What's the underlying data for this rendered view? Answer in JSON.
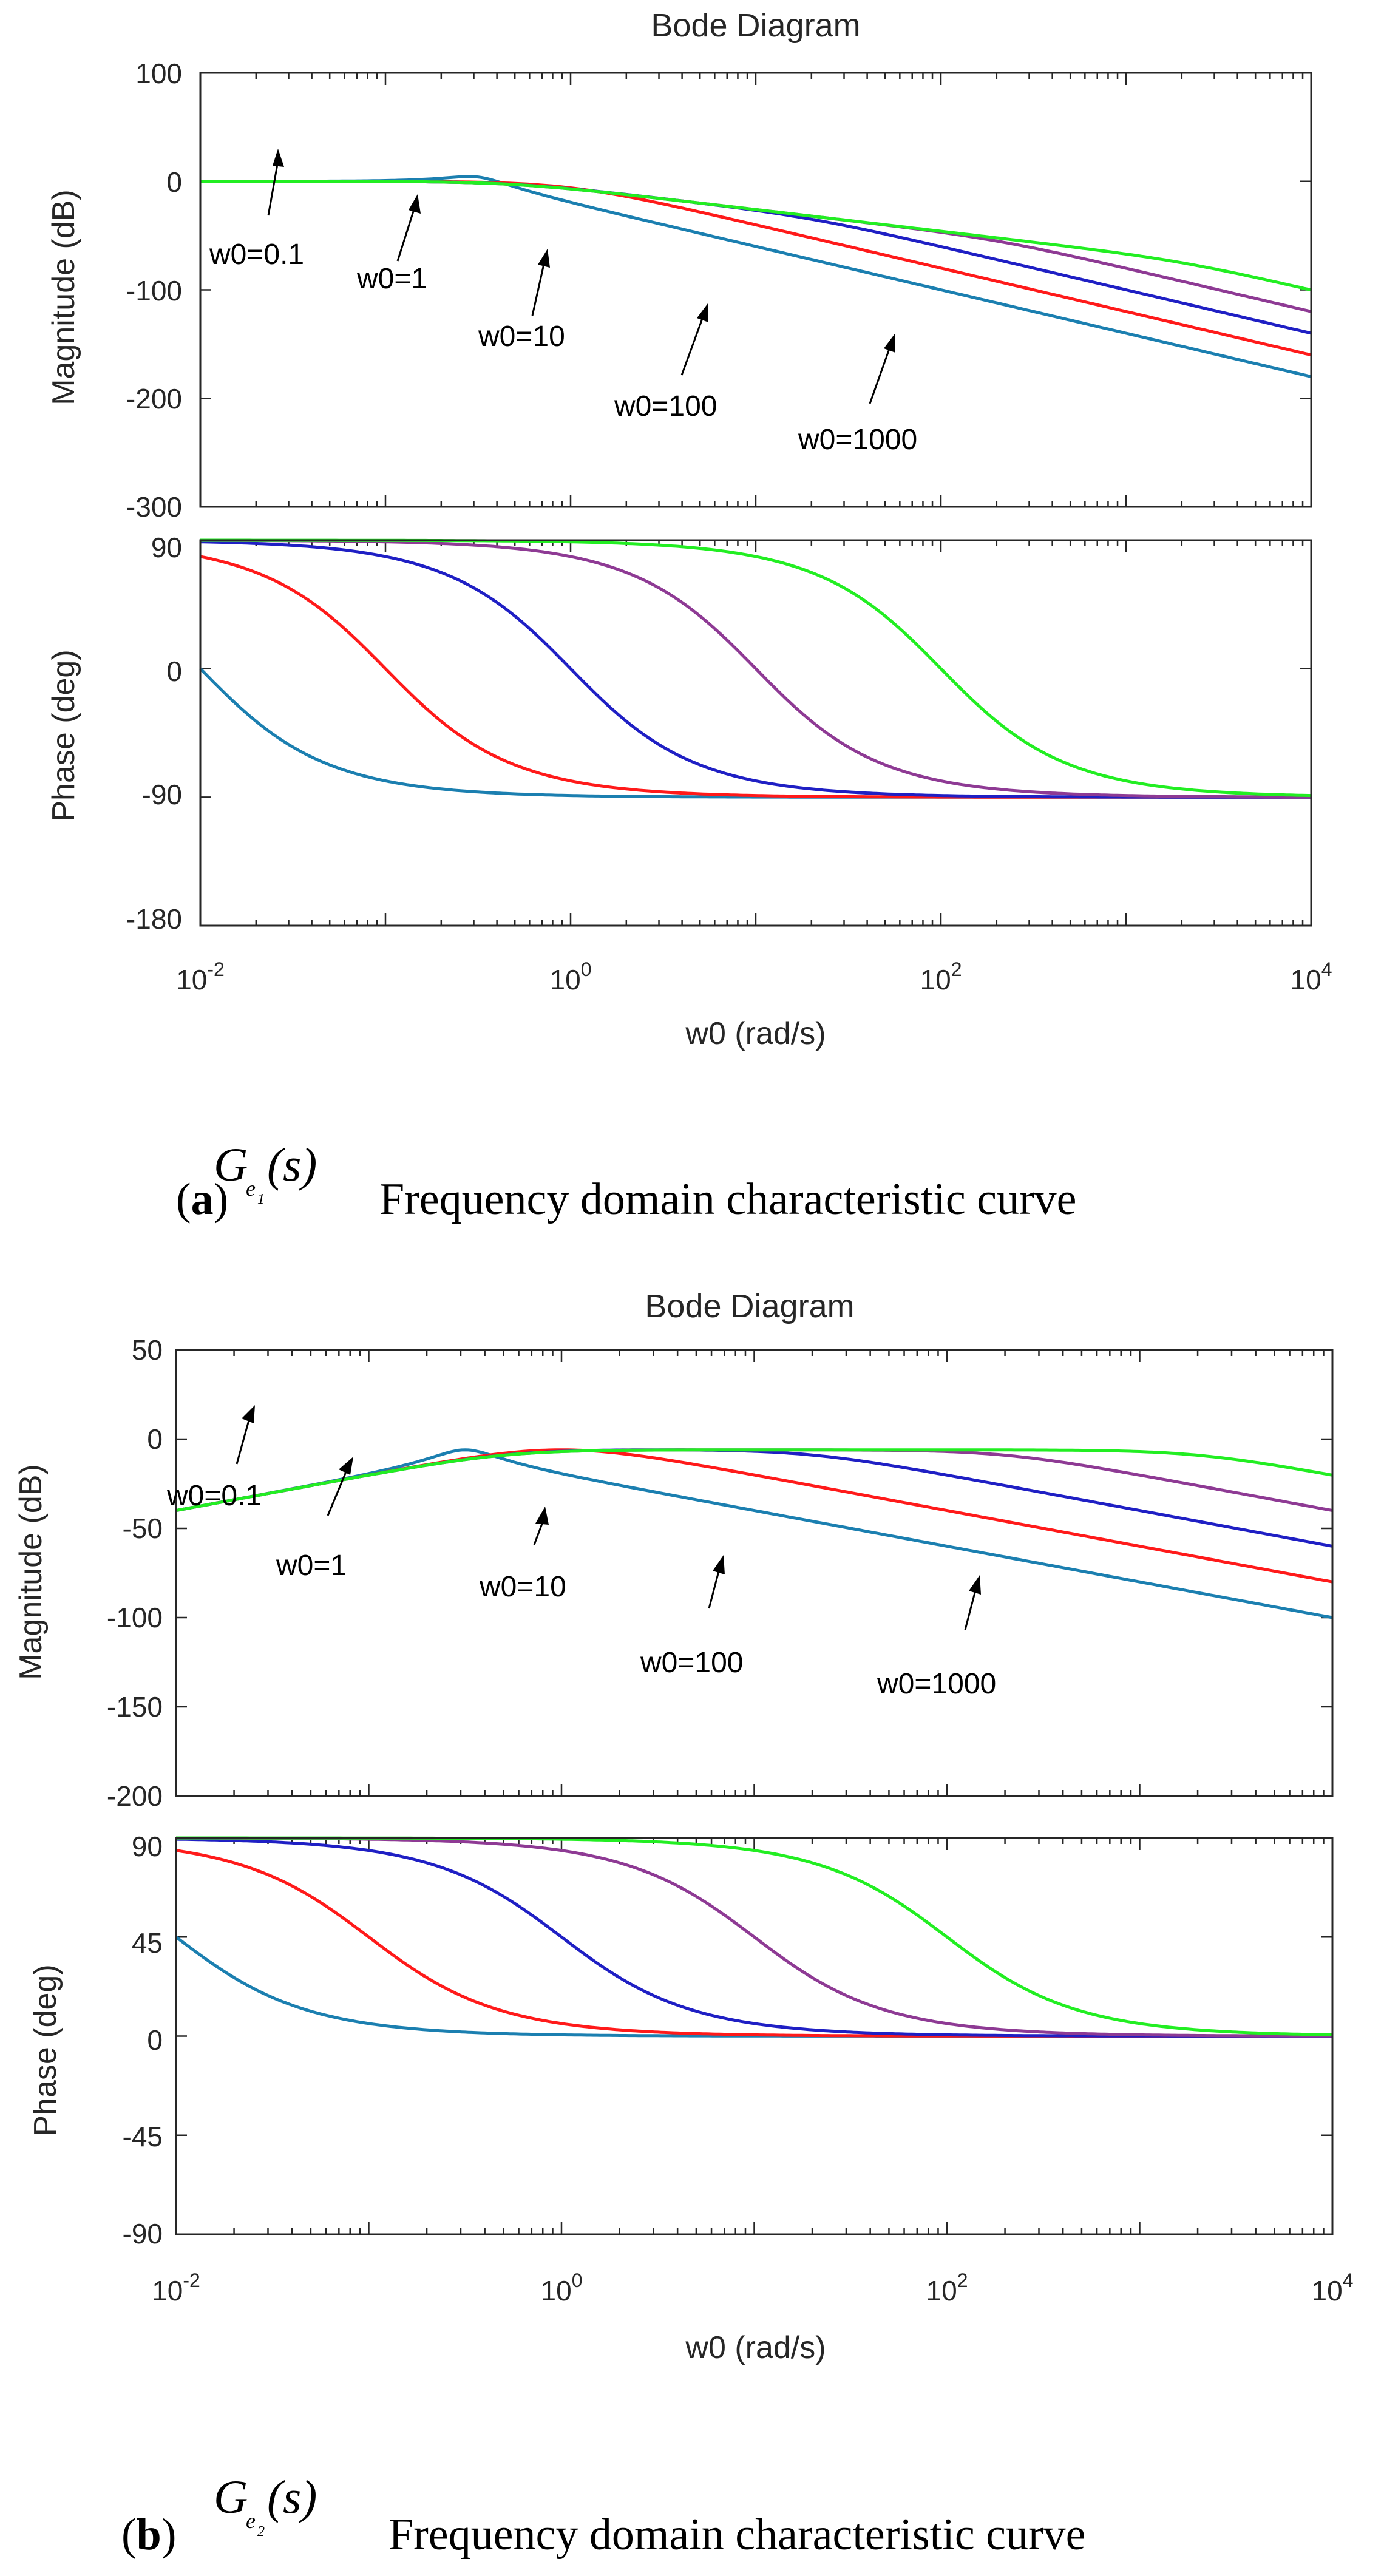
{
  "chart_data": [
    {
      "id": "a",
      "type": "line",
      "title": "Bode Diagram",
      "xlabel": "w0  (rad/s)",
      "xscale": "log",
      "xlim": [
        0.01,
        10000
      ],
      "x_ticks": [
        {
          "base": "10",
          "exp": "-2"
        },
        {
          "base": "10",
          "exp": "0"
        },
        {
          "base": "10",
          "exp": "2"
        },
        {
          "base": "10",
          "exp": "4"
        }
      ],
      "magnitude": {
        "ylabel": "Magnitude (dB)",
        "ylim": [
          -300,
          100
        ],
        "y_ticks": [
          "100",
          "0",
          "-100",
          "-200",
          "-300"
        ],
        "model": "w0/(s^2+2*w0*s+w0)",
        "series": [
          {
            "name": "w0=0.1",
            "w0": 0.1,
            "color": "#1b7fb0"
          },
          {
            "name": "w0=1",
            "w0": 1,
            "color": "#ff1a1a"
          },
          {
            "name": "w0=10",
            "w0": 10,
            "color": "#1f1fc4"
          },
          {
            "name": "w0=100",
            "w0": 100,
            "color": "#8e3a94"
          },
          {
            "name": "w0=1000",
            "w0": 1000,
            "color": "#22ee22"
          }
        ]
      },
      "phase": {
        "ylabel": "Phase (deg)",
        "ylim": [
          -180,
          90
        ],
        "y_ticks": [
          "90",
          "0",
          "-90",
          "-180"
        ],
        "model": "90 - 2*atan(w/wc), wc = w0/10"
      },
      "annotations": [
        {
          "text": "w0=0.1"
        },
        {
          "text": "w0=1"
        },
        {
          "text": "w0=10"
        },
        {
          "text": "w0=100"
        },
        {
          "text": "w0=1000"
        }
      ],
      "caption": {
        "label": "a",
        "symbol": "G",
        "sub": "e",
        "subsub": "1",
        "arg": "(s)",
        "text": "Frequency domain characteristic curve"
      }
    },
    {
      "id": "b",
      "type": "line",
      "title": "Bode Diagram",
      "xlabel": "w0  (rad/s)",
      "xscale": "log",
      "xlim": [
        0.01,
        10000
      ],
      "x_ticks": [
        {
          "base": "10",
          "exp": "-2"
        },
        {
          "base": "10",
          "exp": "0"
        },
        {
          "base": "10",
          "exp": "2"
        },
        {
          "base": "10",
          "exp": "4"
        }
      ],
      "magnitude": {
        "ylabel": "Magnitude (dB)",
        "ylim": [
          -200,
          50
        ],
        "y_ticks": [
          "50",
          "0",
          "-50",
          "-100",
          "-150",
          "-200"
        ],
        "model": "s*w0/(s^2+2*w0*s+w0)",
        "series": [
          {
            "name": "w0=0.1",
            "w0": 0.1,
            "color": "#1b7fb0"
          },
          {
            "name": "w0=1",
            "w0": 1,
            "color": "#ff1a1a"
          },
          {
            "name": "w0=10",
            "w0": 10,
            "color": "#1f1fc4"
          },
          {
            "name": "w0=100",
            "w0": 100,
            "color": "#8e3a94"
          },
          {
            "name": "w0=1000",
            "w0": 1000,
            "color": "#22ee22"
          }
        ]
      },
      "phase": {
        "ylabel": "Phase (deg)",
        "ylim": [
          -90,
          90
        ],
        "y_ticks": [
          "90",
          "45",
          "0",
          "-45",
          "-90"
        ],
        "model": "90 - atan(w/wc), wc = w0/10"
      },
      "annotations": [
        {
          "text": "w0=0.1"
        },
        {
          "text": "w0=1"
        },
        {
          "text": "w0=10"
        },
        {
          "text": "w0=100"
        },
        {
          "text": "w0=1000"
        }
      ],
      "caption": {
        "label": "b",
        "symbol": "G",
        "sub": "e",
        "subsub": "2",
        "arg": "(s)",
        "text": "Frequency domain characteristic curve"
      }
    }
  ]
}
